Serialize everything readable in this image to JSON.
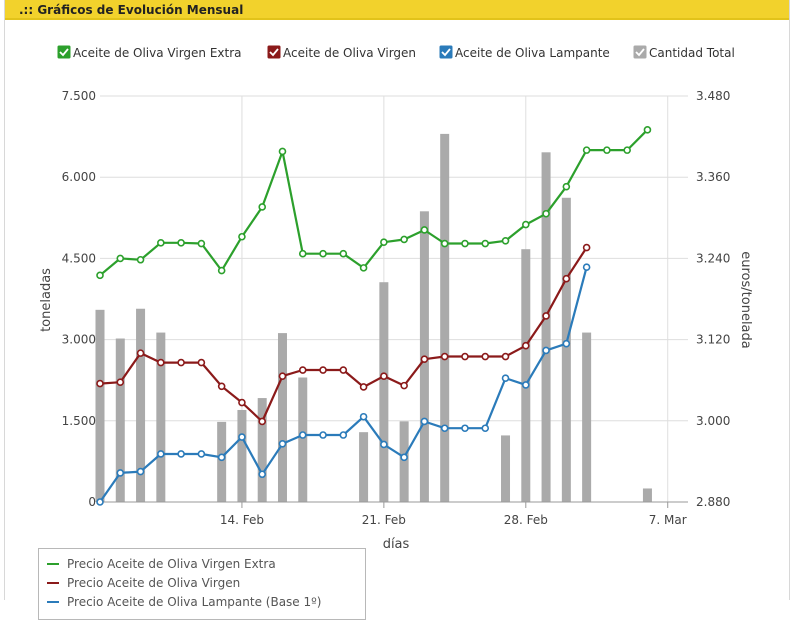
{
  "header": {
    "title": ".:: Gráficos de Evolución  Mensual"
  },
  "colors": {
    "extra": "#2ca02c",
    "virgen": "#8b1a1a",
    "lampante": "#2b7bba",
    "total": "#aaaaaa",
    "header_bg": "#f2d22c"
  },
  "chart_data": {
    "type": "line",
    "title": "",
    "xlabel": "días",
    "ylabel": "toneladas",
    "ylabel_right": "euros/tonelada",
    "xlim": [
      "2011-02-07",
      "2011-03-08"
    ],
    "ylim": [
      0,
      7500
    ],
    "ylim_right": [
      2880,
      3480
    ],
    "x_ticks": [
      {
        "date": "2011-02-14",
        "label": "14. Feb"
      },
      {
        "date": "2011-02-21",
        "label": "21. Feb"
      },
      {
        "date": "2011-02-28",
        "label": "28. Feb"
      },
      {
        "date": "2011-03-07",
        "label": "7. Mar"
      }
    ],
    "y_ticks_left": [
      "0",
      "1.500",
      "3.000",
      "4.500",
      "6.000",
      "7.500"
    ],
    "y_tick_values_left": [
      0,
      1500,
      3000,
      4500,
      6000,
      7500
    ],
    "y_ticks_right": [
      "2.880",
      "3.000",
      "3.120",
      "3.240",
      "3.360",
      "3.480"
    ],
    "y_tick_values_right": [
      2880,
      3000,
      3120,
      3240,
      3360,
      3480
    ],
    "legend_top": [
      {
        "name": "Aceite de Oliva Virgen Extra",
        "color": "#2ca02c"
      },
      {
        "name": "Aceite de Oliva Virgen",
        "color": "#8b1a1a"
      },
      {
        "name": "Aceite de Oliva Lampante",
        "color": "#2b7bba"
      },
      {
        "name": "Cantidad Total",
        "color": "#aaaaaa"
      }
    ],
    "legend_bottom": [
      {
        "name": "Precio Aceite de Oliva Virgen Extra",
        "color": "#2ca02c"
      },
      {
        "name": "Precio Aceite de Oliva Virgen",
        "color": "#8b1a1a"
      },
      {
        "name": "Precio Aceite de Oliva Lampante (Base 1º)",
        "color": "#2b7bba"
      }
    ],
    "bars": {
      "name": "Cantidad Total",
      "axis": "left",
      "points": [
        {
          "x": "2011-02-07",
          "y": 3550
        },
        {
          "x": "2011-02-08",
          "y": 3020
        },
        {
          "x": "2011-02-09",
          "y": 3570
        },
        {
          "x": "2011-02-10",
          "y": 3130
        },
        {
          "x": "2011-02-13",
          "y": 1480
        },
        {
          "x": "2011-02-14",
          "y": 1700
        },
        {
          "x": "2011-02-15",
          "y": 1920
        },
        {
          "x": "2011-02-16",
          "y": 3120
        },
        {
          "x": "2011-02-17",
          "y": 2300
        },
        {
          "x": "2011-02-20",
          "y": 1290
        },
        {
          "x": "2011-02-21",
          "y": 4060
        },
        {
          "x": "2011-02-22",
          "y": 1490
        },
        {
          "x": "2011-02-23",
          "y": 5370
        },
        {
          "x": "2011-02-24",
          "y": 6800
        },
        {
          "x": "2011-02-27",
          "y": 1230
        },
        {
          "x": "2011-02-28",
          "y": 4670
        },
        {
          "x": "2011-03-01",
          "y": 6460
        },
        {
          "x": "2011-03-02",
          "y": 5620
        },
        {
          "x": "2011-03-03",
          "y": 3130
        },
        {
          "x": "2011-03-06",
          "y": 250
        }
      ]
    },
    "series": [
      {
        "name": "Precio Aceite de Oliva Virgen Extra",
        "axis": "right",
        "color": "#2ca02c",
        "points": [
          {
            "x": "2011-02-07",
            "y": 3215
          },
          {
            "x": "2011-02-08",
            "y": 3240
          },
          {
            "x": "2011-02-09",
            "y": 3238
          },
          {
            "x": "2011-02-10",
            "y": 3263
          },
          {
            "x": "2011-02-11",
            "y": 3263
          },
          {
            "x": "2011-02-12",
            "y": 3262
          },
          {
            "x": "2011-02-13",
            "y": 3222
          },
          {
            "x": "2011-02-14",
            "y": 3272
          },
          {
            "x": "2011-02-15",
            "y": 3316
          },
          {
            "x": "2011-02-16",
            "y": 3398
          },
          {
            "x": "2011-02-17",
            "y": 3247
          },
          {
            "x": "2011-02-18",
            "y": 3247
          },
          {
            "x": "2011-02-19",
            "y": 3247
          },
          {
            "x": "2011-02-20",
            "y": 3226
          },
          {
            "x": "2011-02-21",
            "y": 3264
          },
          {
            "x": "2011-02-22",
            "y": 3268
          },
          {
            "x": "2011-02-23",
            "y": 3282
          },
          {
            "x": "2011-02-24",
            "y": 3262
          },
          {
            "x": "2011-02-25",
            "y": 3262
          },
          {
            "x": "2011-02-26",
            "y": 3262
          },
          {
            "x": "2011-02-27",
            "y": 3266
          },
          {
            "x": "2011-02-28",
            "y": 3290
          },
          {
            "x": "2011-03-01",
            "y": 3306
          },
          {
            "x": "2011-03-02",
            "y": 3346
          },
          {
            "x": "2011-03-03",
            "y": 3400
          },
          {
            "x": "2011-03-04",
            "y": 3400
          },
          {
            "x": "2011-03-05",
            "y": 3400
          },
          {
            "x": "2011-03-06",
            "y": 3430
          }
        ]
      },
      {
        "name": "Precio Aceite de Oliva Virgen",
        "axis": "right",
        "color": "#8b1a1a",
        "points": [
          {
            "x": "2011-02-07",
            "y": 3055
          },
          {
            "x": "2011-02-08",
            "y": 3057
          },
          {
            "x": "2011-02-09",
            "y": 3100
          },
          {
            "x": "2011-02-10",
            "y": 3086
          },
          {
            "x": "2011-02-11",
            "y": 3086
          },
          {
            "x": "2011-02-12",
            "y": 3086
          },
          {
            "x": "2011-02-13",
            "y": 3051
          },
          {
            "x": "2011-02-14",
            "y": 3027
          },
          {
            "x": "2011-02-15",
            "y": 2999
          },
          {
            "x": "2011-02-16",
            "y": 3066
          },
          {
            "x": "2011-02-17",
            "y": 3075
          },
          {
            "x": "2011-02-18",
            "y": 3075
          },
          {
            "x": "2011-02-19",
            "y": 3075
          },
          {
            "x": "2011-02-20",
            "y": 3050
          },
          {
            "x": "2011-02-21",
            "y": 3066
          },
          {
            "x": "2011-02-22",
            "y": 3052
          },
          {
            "x": "2011-02-23",
            "y": 3091
          },
          {
            "x": "2011-02-24",
            "y": 3095
          },
          {
            "x": "2011-02-25",
            "y": 3095
          },
          {
            "x": "2011-02-26",
            "y": 3095
          },
          {
            "x": "2011-02-27",
            "y": 3095
          },
          {
            "x": "2011-02-28",
            "y": 3111
          },
          {
            "x": "2011-03-01",
            "y": 3155
          },
          {
            "x": "2011-03-02",
            "y": 3210
          },
          {
            "x": "2011-03-03",
            "y": 3256
          }
        ]
      },
      {
        "name": "Precio Aceite de Oliva Lampante (Base 1º)",
        "axis": "right",
        "color": "#2b7bba",
        "points": [
          {
            "x": "2011-02-07",
            "y": 2880
          },
          {
            "x": "2011-02-08",
            "y": 2923
          },
          {
            "x": "2011-02-09",
            "y": 2925
          },
          {
            "x": "2011-02-10",
            "y": 2951
          },
          {
            "x": "2011-02-11",
            "y": 2951
          },
          {
            "x": "2011-02-12",
            "y": 2951
          },
          {
            "x": "2011-02-13",
            "y": 2946
          },
          {
            "x": "2011-02-14",
            "y": 2976
          },
          {
            "x": "2011-02-15",
            "y": 2921
          },
          {
            "x": "2011-02-16",
            "y": 2966
          },
          {
            "x": "2011-02-17",
            "y": 2979
          },
          {
            "x": "2011-02-18",
            "y": 2979
          },
          {
            "x": "2011-02-19",
            "y": 2979
          },
          {
            "x": "2011-02-20",
            "y": 3006
          },
          {
            "x": "2011-02-21",
            "y": 2965
          },
          {
            "x": "2011-02-22",
            "y": 2946
          },
          {
            "x": "2011-02-23",
            "y": 2999
          },
          {
            "x": "2011-02-24",
            "y": 2989
          },
          {
            "x": "2011-02-25",
            "y": 2989
          },
          {
            "x": "2011-02-26",
            "y": 2989
          },
          {
            "x": "2011-02-27",
            "y": 3063
          },
          {
            "x": "2011-02-28",
            "y": 3053
          },
          {
            "x": "2011-03-01",
            "y": 3104
          },
          {
            "x": "2011-03-02",
            "y": 3114
          },
          {
            "x": "2011-03-03",
            "y": 3227
          }
        ]
      }
    ]
  }
}
